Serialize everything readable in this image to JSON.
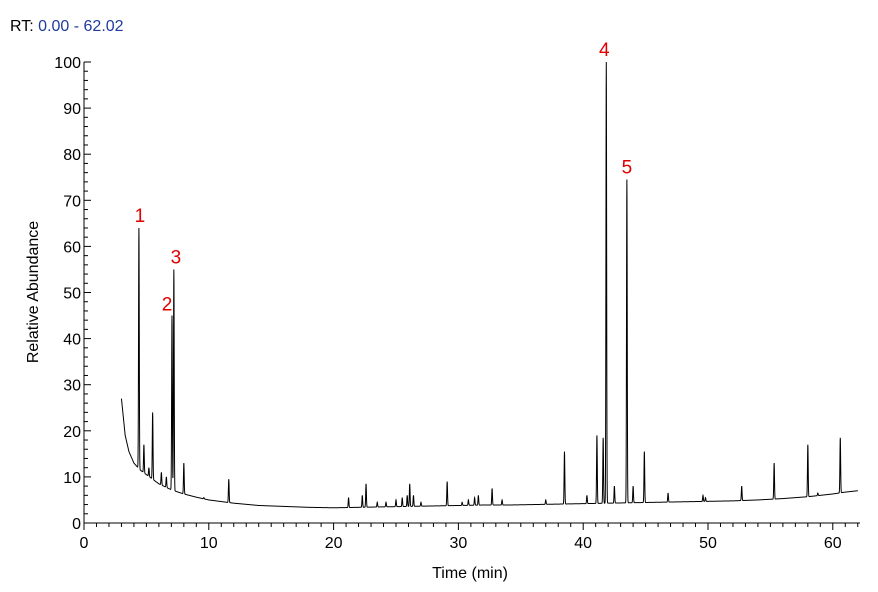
{
  "header": {
    "rt_prefix": "RT:",
    "rt_range": "0.00 - 62.02",
    "rt_color": "#1f3c9c"
  },
  "chart_data": {
    "type": "line",
    "title": "",
    "xlabel": "Time (min)",
    "ylabel": "Relative Abundance",
    "xlim": [
      0,
      62.02
    ],
    "ylim": [
      0,
      100
    ],
    "x_ticks": [
      0,
      10,
      20,
      30,
      40,
      50,
      60
    ],
    "y_ticks": [
      0,
      10,
      20,
      30,
      40,
      50,
      60,
      70,
      80,
      90,
      100
    ],
    "x_tick_labels": [
      "0",
      "10",
      "20",
      "30",
      "40",
      "50",
      "60"
    ],
    "y_tick_labels": [
      "0",
      "10",
      "20",
      "30",
      "40",
      "50",
      "60",
      "70",
      "80",
      "90",
      "100"
    ],
    "grid": false,
    "line_color": "#000000",
    "annotation_color": "#e00000",
    "series": [
      {
        "baseline": [
          [
            3.0,
            27
          ],
          [
            3.3,
            19
          ],
          [
            3.6,
            15.5
          ],
          [
            4.0,
            13
          ],
          [
            4.5,
            11.5
          ],
          [
            5.0,
            10.5
          ],
          [
            5.5,
            9.5
          ],
          [
            6.0,
            8.5
          ],
          [
            7.0,
            7.2
          ],
          [
            8.0,
            6.3
          ],
          [
            9.0,
            5.6
          ],
          [
            10.0,
            5.0
          ],
          [
            12.0,
            4.3
          ],
          [
            14.0,
            3.8
          ],
          [
            16.0,
            3.6
          ],
          [
            18.0,
            3.4
          ],
          [
            20.0,
            3.3
          ],
          [
            22.0,
            3.4
          ],
          [
            24.0,
            3.5
          ],
          [
            26.0,
            3.6
          ],
          [
            28.0,
            3.7
          ],
          [
            30.0,
            3.8
          ],
          [
            32.0,
            3.9
          ],
          [
            34.0,
            3.9
          ],
          [
            36.0,
            4.0
          ],
          [
            38.0,
            4.1
          ],
          [
            40.0,
            4.2
          ],
          [
            42.0,
            4.3
          ],
          [
            44.0,
            4.4
          ],
          [
            46.0,
            4.5
          ],
          [
            48.0,
            4.6
          ],
          [
            50.0,
            4.7
          ],
          [
            52.0,
            4.8
          ],
          [
            54.0,
            5.0
          ],
          [
            56.0,
            5.3
          ],
          [
            58.0,
            5.7
          ],
          [
            60.0,
            6.3
          ],
          [
            61.0,
            6.7
          ],
          [
            62.0,
            7.0
          ]
        ],
        "peaks": [
          [
            4.4,
            64
          ],
          [
            4.8,
            17
          ],
          [
            5.2,
            12
          ],
          [
            5.5,
            24
          ],
          [
            6.2,
            11
          ],
          [
            6.6,
            10
          ],
          [
            7.05,
            45
          ],
          [
            7.2,
            55
          ],
          [
            8.0,
            13
          ],
          [
            9.6,
            5.5
          ],
          [
            11.6,
            9.5
          ],
          [
            21.2,
            5.5
          ],
          [
            22.3,
            6
          ],
          [
            22.6,
            8.5
          ],
          [
            23.5,
            4.5
          ],
          [
            24.2,
            4.5
          ],
          [
            25.0,
            5
          ],
          [
            25.5,
            5.5
          ],
          [
            25.9,
            6
          ],
          [
            26.1,
            8.5
          ],
          [
            26.4,
            6
          ],
          [
            27.0,
            4.5
          ],
          [
            29.1,
            9
          ],
          [
            30.3,
            4.5
          ],
          [
            30.8,
            5
          ],
          [
            31.3,
            5.5
          ],
          [
            31.6,
            6
          ],
          [
            32.7,
            7.5
          ],
          [
            33.5,
            5
          ],
          [
            37.0,
            5
          ],
          [
            38.5,
            15.5
          ],
          [
            40.3,
            6
          ],
          [
            41.1,
            19
          ],
          [
            41.6,
            18.5
          ],
          [
            41.85,
            100
          ],
          [
            42.5,
            8
          ],
          [
            43.5,
            74.5
          ],
          [
            44.0,
            8
          ],
          [
            44.9,
            15.5
          ],
          [
            46.8,
            6.5
          ],
          [
            49.6,
            6
          ],
          [
            49.8,
            5.5
          ],
          [
            52.7,
            8
          ],
          [
            55.3,
            13
          ],
          [
            58.0,
            17
          ],
          [
            58.8,
            6.5
          ],
          [
            60.6,
            18.5
          ]
        ]
      }
    ],
    "annotations": [
      {
        "text": "1",
        "x": 4.4,
        "y": 64
      },
      {
        "text": "2",
        "x": 7.05,
        "y": 45
      },
      {
        "text": "3",
        "x": 7.2,
        "y": 55
      },
      {
        "text": "4",
        "x": 41.85,
        "y": 100
      },
      {
        "text": "5",
        "x": 43.5,
        "y": 74.5
      }
    ]
  }
}
